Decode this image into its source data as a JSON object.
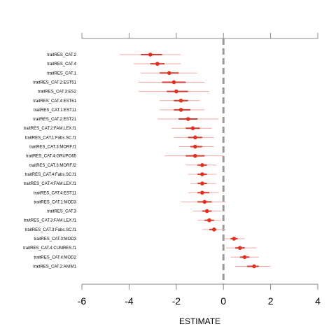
{
  "chart_data": {
    "type": "scatter",
    "subtype": "coefficient-forest-plot",
    "xlabel": "ESTIMATE",
    "ylabel": "",
    "title": "",
    "xlim": [
      -6,
      4
    ],
    "x_ticks": [
      -6,
      -4,
      -2,
      0,
      2,
      4
    ],
    "x_tick_labels": [
      "-6",
      "-4",
      "-2",
      "0",
      "2",
      "4"
    ],
    "reference_line": 0,
    "grid": false,
    "colors": {
      "point": "#e0301e",
      "ci_thin": "#f4a6a0",
      "ci_thick": "#d63a2c",
      "reference": "#999999",
      "axis": "#888888"
    },
    "rows": [
      {
        "label": "traitRES_CAT.2",
        "estimate": -3.1,
        "ci95": [
          -4.4,
          -1.8
        ],
        "ci50": [
          -3.5,
          -2.6
        ]
      },
      {
        "label": "traitRES_CAT.4",
        "estimate": -2.8,
        "ci95": [
          -3.8,
          -1.8
        ],
        "ci50": [
          -3.1,
          -2.5
        ]
      },
      {
        "label": "traitRES_CAT.1",
        "estimate": -2.3,
        "ci95": [
          -3.5,
          -1.1
        ],
        "ci50": [
          -2.7,
          -1.9
        ]
      },
      {
        "label": "traitRES_CAT.2:EST51",
        "estimate": -2.1,
        "ci95": [
          -3.6,
          -0.8
        ],
        "ci50": [
          -2.6,
          -1.6
        ]
      },
      {
        "label": "traitRES_CAT.3:ES2",
        "estimate": -2.0,
        "ci95": [
          -3.6,
          -0.6
        ],
        "ci50": [
          -2.4,
          -1.5
        ]
      },
      {
        "label": "traitRES_CAT.4:EST61",
        "estimate": -1.8,
        "ci95": [
          -2.7,
          -1.0
        ],
        "ci50": [
          -2.1,
          -1.5
        ]
      },
      {
        "label": "traitRES_CAT.1:EST11",
        "estimate": -1.8,
        "ci95": [
          -2.7,
          -0.8
        ],
        "ci50": [
          -2.1,
          -1.4
        ]
      },
      {
        "label": "traitRES_CAT.2:EST21",
        "estimate": -1.5,
        "ci95": [
          -2.8,
          -0.2
        ],
        "ci50": [
          -1.9,
          -1.1
        ]
      },
      {
        "label": "traitRES_CAT.2:FAM.LEX.f1",
        "estimate": -1.3,
        "ci95": [
          -2.2,
          -0.5
        ],
        "ci50": [
          -1.6,
          -1.0
        ]
      },
      {
        "label": "traitRES_CAT.1:Fabs.SC.f1",
        "estimate": -1.2,
        "ci95": [
          -2.1,
          -0.4
        ],
        "ci50": [
          -1.5,
          -0.9
        ]
      },
      {
        "label": "traitRES_CAT.3:MORF.f1",
        "estimate": -1.2,
        "ci95": [
          -1.9,
          -0.4
        ],
        "ci50": [
          -1.4,
          -0.9
        ]
      },
      {
        "label": "traitRES_CAT.4:GRUPO65",
        "estimate": -1.2,
        "ci95": [
          -2.5,
          0.0
        ],
        "ci50": [
          -1.6,
          -0.8
        ]
      },
      {
        "label": "traitRES_CAT.3:MORF.f2",
        "estimate": -0.9,
        "ci95": [
          -1.6,
          -0.3
        ],
        "ci50": [
          -1.1,
          -0.7
        ]
      },
      {
        "label": "traitRES_CAT.4:Fabs.SC.f1",
        "estimate": -0.9,
        "ci95": [
          -1.5,
          -0.3
        ],
        "ci50": [
          -1.1,
          -0.7
        ]
      },
      {
        "label": "traitRES_CAT.4:FAM.LEX.f1",
        "estimate": -0.9,
        "ci95": [
          -1.4,
          -0.3
        ],
        "ci50": [
          -1.1,
          -0.7
        ]
      },
      {
        "label": "traitRES_CAT.4:EST11",
        "estimate": -0.9,
        "ci95": [
          -1.5,
          -0.2
        ],
        "ci50": [
          -1.1,
          -0.6
        ]
      },
      {
        "label": "traitRES_CAT.1:MOD3",
        "estimate": -0.8,
        "ci95": [
          -1.8,
          0.1
        ],
        "ci50": [
          -1.1,
          -0.5
        ]
      },
      {
        "label": "traitRES_CAT.3",
        "estimate": -0.7,
        "ci95": [
          -1.3,
          -0.1
        ],
        "ci50": [
          -0.9,
          -0.5
        ]
      },
      {
        "label": "traitRES_CAT.3:FAM.LEX.f1",
        "estimate": -0.6,
        "ci95": [
          -1.1,
          -0.1
        ],
        "ci50": [
          -0.8,
          -0.4
        ]
      },
      {
        "label": "traitRES_CAT.3:Fabs.SC.f1",
        "estimate": -0.4,
        "ci95": [
          -0.9,
          0.1
        ],
        "ci50": [
          -0.6,
          -0.3
        ]
      },
      {
        "label": "traitRES_CAT.3:MOD3",
        "estimate": 0.45,
        "ci95": [
          0.0,
          0.9
        ],
        "ci50": [
          0.3,
          0.6
        ]
      },
      {
        "label": "traitRES_CAT.4:CUMRES.f1",
        "estimate": 0.7,
        "ci95": [
          0.1,
          1.4
        ],
        "ci50": [
          0.5,
          0.9
        ]
      },
      {
        "label": "traitRES_CAT.4:MOD2",
        "estimate": 0.9,
        "ci95": [
          0.3,
          1.5
        ],
        "ci50": [
          0.7,
          1.1
        ]
      },
      {
        "label": "traitRES_CAT.2:ANIM1",
        "estimate": 1.3,
        "ci95": [
          0.5,
          2.0
        ],
        "ci50": [
          1.0,
          1.5
        ]
      }
    ]
  }
}
